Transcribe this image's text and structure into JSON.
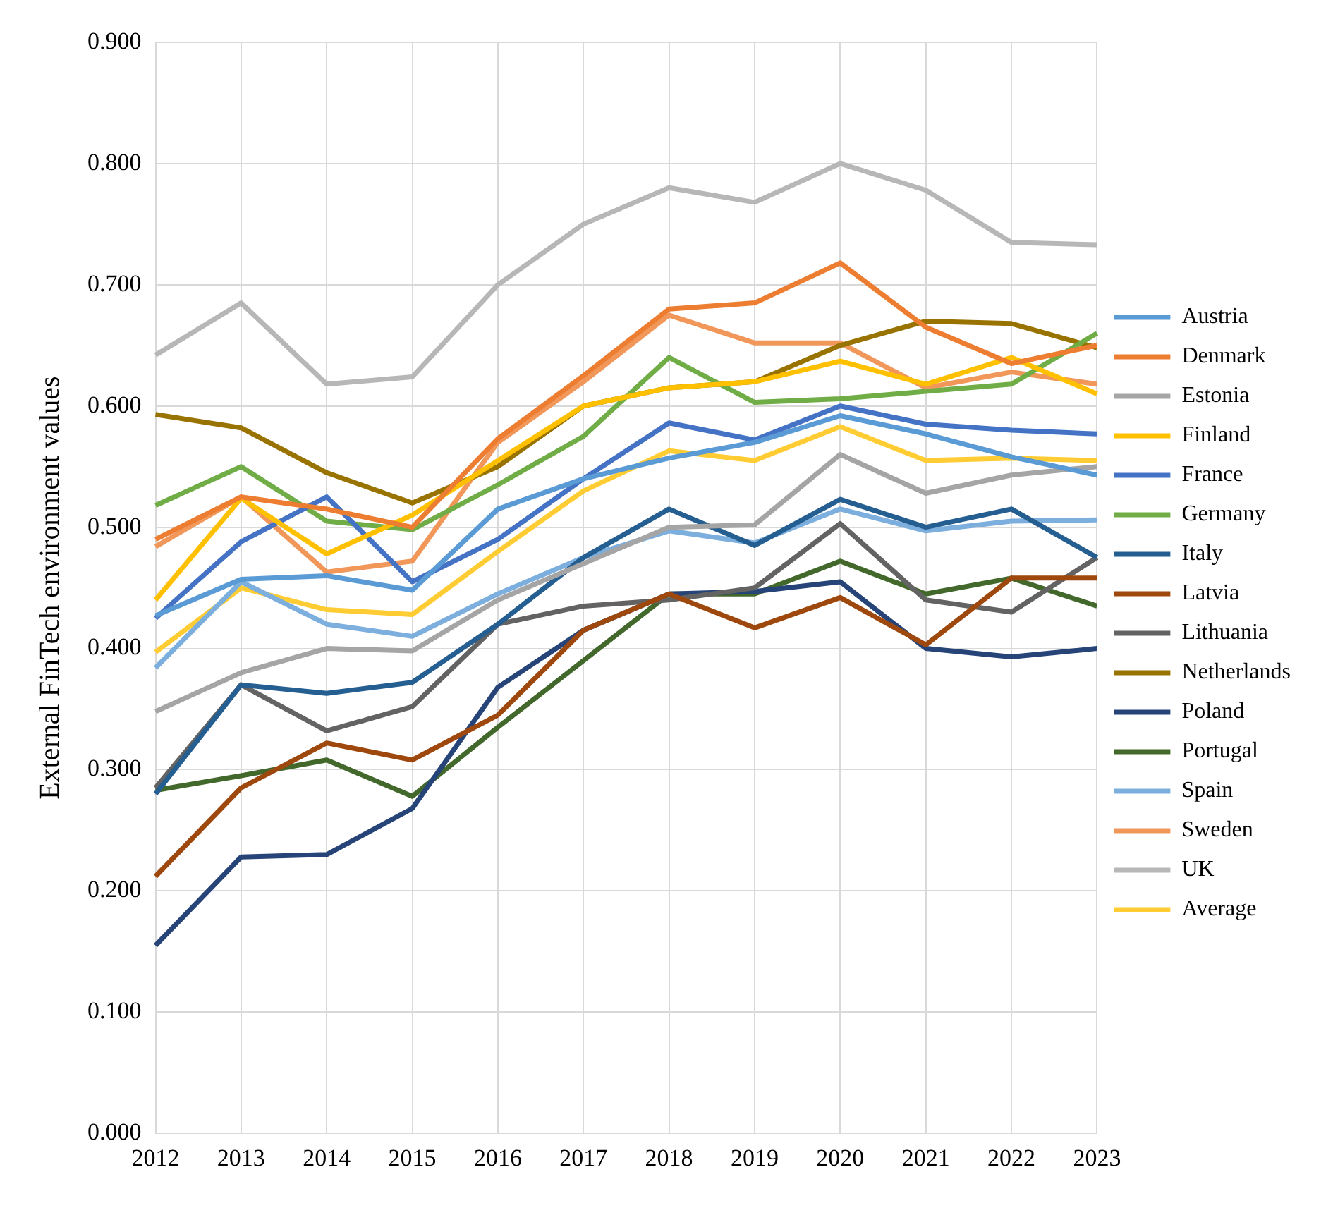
{
  "chart_data": {
    "type": "line",
    "ylabel": "External FinTech environment values",
    "categories": [
      "2012",
      "2013",
      "2014",
      "2015",
      "2016",
      "2017",
      "2018",
      "2019",
      "2020",
      "2021",
      "2022",
      "2023"
    ],
    "ylim": [
      0,
      0.9
    ],
    "yticks": [
      {
        "value": 0,
        "label": "0.000"
      },
      {
        "value": 0.1,
        "label": "0.100"
      },
      {
        "value": 0.2,
        "label": "0.200"
      },
      {
        "value": 0.3,
        "label": "0.300"
      },
      {
        "value": 0.4,
        "label": "0.400"
      },
      {
        "value": 0.5,
        "label": "0.500"
      },
      {
        "value": 0.6,
        "label": "0.600"
      },
      {
        "value": 0.7,
        "label": "0.700"
      },
      {
        "value": 0.8,
        "label": "0.800"
      },
      {
        "value": 0.9,
        "label": "0.900"
      }
    ],
    "grid": true,
    "legend": "right",
    "marker": "none",
    "line_style": "solid",
    "series": [
      {
        "name": "Austria",
        "color": "#5b9bd5",
        "values": [
          0.427,
          0.457,
          0.46,
          0.448,
          0.515,
          0.54,
          0.557,
          0.57,
          0.592,
          0.577,
          0.558,
          0.543
        ]
      },
      {
        "name": "Denmark",
        "color": "#ed7d31",
        "values": [
          0.49,
          0.525,
          0.515,
          0.5,
          0.573,
          0.625,
          0.68,
          0.685,
          0.718,
          0.665,
          0.635,
          0.65
        ]
      },
      {
        "name": "Estonia",
        "color": "#a5a5a5",
        "values": [
          0.348,
          0.38,
          0.4,
          0.398,
          0.44,
          0.47,
          0.5,
          0.502,
          0.56,
          0.528,
          0.543,
          0.55
        ]
      },
      {
        "name": "Finland",
        "color": "#ffc000",
        "values": [
          0.44,
          0.524,
          0.478,
          0.51,
          0.555,
          0.6,
          0.615,
          0.62,
          0.637,
          0.618,
          0.64,
          0.61
        ]
      },
      {
        "name": "France",
        "color": "#4472c4",
        "values": [
          0.425,
          0.488,
          0.525,
          0.455,
          0.49,
          0.54,
          0.586,
          0.572,
          0.6,
          0.585,
          0.58,
          0.577
        ]
      },
      {
        "name": "Germany",
        "color": "#70ad47",
        "values": [
          0.518,
          0.55,
          0.505,
          0.498,
          0.535,
          0.575,
          0.64,
          0.603,
          0.606,
          0.612,
          0.618,
          0.66
        ]
      },
      {
        "name": "Italy",
        "color": "#255e91",
        "values": [
          0.28,
          0.37,
          0.363,
          0.372,
          0.42,
          0.475,
          0.515,
          0.485,
          0.523,
          0.5,
          0.515,
          0.475
        ]
      },
      {
        "name": "Latvia",
        "color": "#9e480e",
        "values": [
          0.212,
          0.285,
          0.322,
          0.308,
          0.345,
          0.415,
          0.445,
          0.417,
          0.442,
          0.403,
          0.458,
          0.458
        ]
      },
      {
        "name": "Lithuania",
        "color": "#636363",
        "values": [
          0.285,
          0.37,
          0.332,
          0.352,
          0.42,
          0.435,
          0.44,
          0.45,
          0.503,
          0.44,
          0.43,
          0.475
        ]
      },
      {
        "name": "Netherlands",
        "color": "#997300",
        "values": [
          0.593,
          0.582,
          0.545,
          0.52,
          0.55,
          0.6,
          0.615,
          0.62,
          0.65,
          0.67,
          0.668,
          0.648
        ]
      },
      {
        "name": "Poland",
        "color": "#264478",
        "values": [
          0.155,
          0.228,
          0.23,
          0.268,
          0.368,
          0.415,
          0.445,
          0.447,
          0.455,
          0.4,
          0.393,
          0.4
        ]
      },
      {
        "name": "Portugal",
        "color": "#43682b",
        "values": [
          0.283,
          0.295,
          0.308,
          0.278,
          0.335,
          0.39,
          0.445,
          0.445,
          0.472,
          0.445,
          0.458,
          0.435
        ]
      },
      {
        "name": "Spain",
        "color": "#7cafdd",
        "values": [
          0.384,
          0.455,
          0.42,
          0.41,
          0.445,
          0.475,
          0.497,
          0.487,
          0.515,
          0.497,
          0.505,
          0.506
        ]
      },
      {
        "name": "Sweden",
        "color": "#f1975a",
        "values": [
          0.484,
          0.525,
          0.463,
          0.472,
          0.57,
          0.62,
          0.675,
          0.652,
          0.652,
          0.615,
          0.628,
          0.618
        ]
      },
      {
        "name": "UK",
        "color": "#b7b7b7",
        "values": [
          0.642,
          0.685,
          0.618,
          0.624,
          0.7,
          0.75,
          0.78,
          0.768,
          0.8,
          0.778,
          0.735,
          0.733
        ]
      },
      {
        "name": "Average",
        "color": "#ffcd33",
        "values": [
          0.397,
          0.45,
          0.432,
          0.428,
          0.48,
          0.53,
          0.563,
          0.555,
          0.583,
          0.555,
          0.557,
          0.555
        ]
      }
    ]
  }
}
